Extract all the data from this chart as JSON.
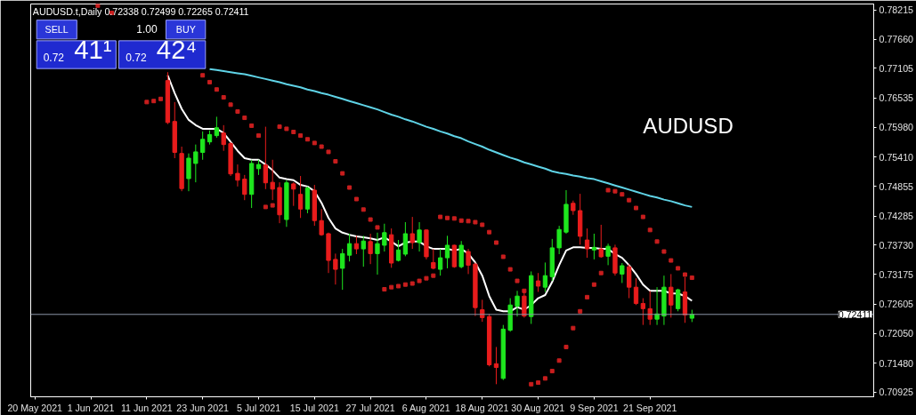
{
  "chart_data": {
    "type": "candlestick",
    "title": "AUDUSD.t,Daily  0.72338 0.72499 0.72265 0.72411",
    "categories": [
      "20 May 2021",
      null,
      null,
      null,
      null,
      null,
      null,
      null,
      "1 Jun 2021",
      null,
      null,
      null,
      null,
      null,
      null,
      null,
      "11 Jun 2021",
      null,
      null,
      null,
      null,
      null,
      null,
      null,
      "23 Jun 2021",
      null,
      null,
      null,
      null,
      null,
      null,
      null,
      "5 Jul 2021",
      null,
      null,
      null,
      null,
      null,
      null,
      null,
      "15 Jul 2021",
      null,
      null,
      null,
      null,
      null,
      null,
      null,
      "27 Jul 2021",
      null,
      null,
      null,
      null,
      null,
      null,
      null,
      "6 Aug 2021",
      null,
      null,
      null,
      null,
      null,
      null,
      null,
      "18 Aug 2021",
      null,
      null,
      null,
      null,
      null,
      null,
      null,
      "30 Aug 2021",
      null,
      null,
      null,
      null,
      null,
      null,
      null,
      "9 Sep 2021",
      null,
      null,
      null,
      null,
      null,
      null,
      null,
      "21 Sep 2021",
      null,
      null,
      null,
      null,
      null,
      null
    ],
    "ohlc": [
      null,
      null,
      null,
      null,
      null,
      null,
      null,
      null,
      null,
      null,
      null,
      null,
      null,
      null,
      null,
      null,
      null,
      null,
      null,
      [
        0.7687,
        0.7703,
        0.7604,
        0.7607
      ],
      [
        0.7609,
        0.7646,
        0.7539,
        0.755
      ],
      [
        0.7548,
        0.7561,
        0.7476,
        0.7481
      ],
      [
        0.75,
        0.7548,
        0.7476,
        0.7539
      ],
      [
        0.7529,
        0.7565,
        0.7493,
        0.7551
      ],
      [
        0.755,
        0.759,
        0.7536,
        0.7575
      ],
      [
        0.757,
        0.7592,
        0.7565,
        0.7584
      ],
      [
        0.7582,
        0.7618,
        0.7578,
        0.7597
      ],
      [
        0.7587,
        0.7602,
        0.7553,
        0.7565
      ],
      [
        0.7567,
        0.757,
        0.7505,
        0.7509
      ],
      [
        0.751,
        0.7527,
        0.7485,
        0.7497
      ],
      [
        0.7499,
        0.7507,
        0.7459,
        0.747
      ],
      [
        0.747,
        0.7536,
        0.7444,
        0.7529
      ],
      [
        0.7519,
        0.7536,
        0.7507,
        0.7527
      ],
      [
        0.7526,
        0.7599,
        0.748,
        0.7492
      ],
      [
        0.7493,
        0.7536,
        0.7459,
        0.748
      ],
      [
        0.7483,
        0.7493,
        0.7415,
        0.7431
      ],
      [
        0.7422,
        0.7497,
        0.7408,
        0.7492
      ],
      [
        0.749,
        0.7493,
        0.7448,
        0.748
      ],
      [
        0.747,
        0.7505,
        0.7425,
        0.7442
      ],
      [
        0.7442,
        0.7485,
        0.7434,
        0.7482
      ],
      [
        0.7478,
        0.7488,
        0.741,
        0.742
      ],
      [
        0.742,
        0.7442,
        0.7391,
        0.7393
      ],
      [
        0.7395,
        0.7397,
        0.732,
        0.7344
      ],
      [
        0.7346,
        0.7357,
        0.7298,
        0.7327
      ],
      [
        0.7329,
        0.7366,
        0.7288,
        0.7357
      ],
      [
        0.7354,
        0.7395,
        0.7342,
        0.7376
      ],
      [
        0.7376,
        0.7391,
        0.7356,
        0.7366
      ],
      [
        0.7366,
        0.7391,
        0.7332,
        0.7381
      ],
      [
        0.738,
        0.7395,
        0.7337,
        0.7357
      ],
      [
        0.7357,
        0.7397,
        0.7317,
        0.7376
      ],
      [
        0.7373,
        0.7414,
        0.7361,
        0.7397
      ],
      [
        0.7393,
        0.7405,
        0.733,
        0.7339
      ],
      [
        0.7344,
        0.7383,
        0.7342,
        0.7364
      ],
      [
        0.7356,
        0.7417,
        0.7352,
        0.7395
      ],
      [
        0.7395,
        0.7427,
        0.7366,
        0.7378
      ],
      [
        0.7378,
        0.7417,
        0.7361,
        0.7402
      ],
      [
        0.7402,
        0.7403,
        0.7346,
        0.7351
      ],
      [
        0.734,
        0.7366,
        0.7327,
        0.7329
      ],
      [
        0.7327,
        0.7366,
        0.7315,
        0.7349
      ],
      [
        0.7349,
        0.7391,
        0.7329,
        0.7373
      ],
      [
        0.7373,
        0.7374,
        0.733,
        0.7332
      ],
      [
        0.7332,
        0.7381,
        0.7329,
        0.7373
      ],
      [
        0.7361,
        0.7366,
        0.7318,
        0.7335
      ],
      [
        0.7337,
        0.734,
        0.7238,
        0.7254
      ],
      [
        0.725,
        0.7269,
        0.7227,
        0.7235
      ],
      [
        0.7237,
        0.7242,
        0.7142,
        0.7145
      ],
      [
        0.7147,
        0.7179,
        0.7108,
        0.714
      ],
      [
        0.7119,
        0.7221,
        0.7116,
        0.7213
      ],
      [
        0.7211,
        0.7272,
        0.7208,
        0.7259
      ],
      [
        0.7257,
        0.7286,
        0.7237,
        0.7276
      ],
      [
        0.7276,
        0.7286,
        0.7235,
        0.7238
      ],
      [
        0.7237,
        0.7323,
        0.7223,
        0.7315
      ],
      [
        0.7305,
        0.732,
        0.7284,
        0.7295
      ],
      [
        0.7293,
        0.734,
        0.7284,
        0.7315
      ],
      [
        0.7313,
        0.7385,
        0.7305,
        0.7368
      ],
      [
        0.7368,
        0.741,
        0.7356,
        0.7403
      ],
      [
        0.7398,
        0.7478,
        0.7395,
        0.7451
      ],
      [
        0.7453,
        0.7458,
        0.7431,
        0.7439
      ],
      [
        0.7439,
        0.7471,
        0.7374,
        0.739
      ],
      [
        0.7383,
        0.7405,
        0.7349,
        0.7366
      ],
      [
        0.7364,
        0.7395,
        0.7346,
        0.7369
      ],
      [
        0.7366,
        0.7412,
        0.7349,
        0.7351
      ],
      [
        0.7352,
        0.7376,
        0.7335,
        0.7371
      ],
      [
        0.7368,
        0.7374,
        0.7315,
        0.732
      ],
      [
        0.7318,
        0.7339,
        0.7301,
        0.7334
      ],
      [
        0.7332,
        0.7337,
        0.7272,
        0.7293
      ],
      [
        0.7293,
        0.731,
        0.7259,
        0.7262
      ],
      [
        0.7262,
        0.7272,
        0.7221,
        0.7252
      ],
      [
        0.7252,
        0.7286,
        0.7221,
        0.7232
      ],
      [
        0.7232,
        0.7293,
        0.7221,
        0.7242
      ],
      [
        0.7238,
        0.7315,
        0.7221,
        0.7293
      ],
      [
        0.7293,
        0.7318,
        0.7235,
        0.7259
      ],
      [
        0.7252,
        0.729,
        0.7247,
        0.7288
      ],
      [
        0.7284,
        0.7312,
        0.7225,
        0.724
      ],
      [
        0.72338,
        0.72499,
        0.72265,
        0.72411
      ]
    ],
    "colors": [
      null,
      null,
      null,
      null,
      null,
      null,
      null,
      null,
      null,
      null,
      null,
      null,
      null,
      null,
      null,
      null,
      null,
      null,
      null,
      "#e81c1c",
      "#e81c1c",
      "#e81c1c",
      "#1ee61e",
      "#1ee61e",
      "#1ee61e",
      "#1ee61e",
      "#1ee61e",
      "#e81c1c",
      "#e81c1c",
      "#e81c1c",
      "#e81c1c",
      "#1ee61e",
      "#1ee61e",
      "#e81c1c",
      "#e81c1c",
      "#e81c1c",
      "#1ee61e",
      "#e81c1c",
      "#e81c1c",
      "#1ee61e",
      "#e81c1c",
      "#e81c1c",
      "#e81c1c",
      "#e81c1c",
      "#1ee61e",
      "#1ee61e",
      "#e81c1c",
      "#1ee61e",
      "#e81c1c",
      "#1ee61e",
      "#1ee61e",
      "#e81c1c",
      "#1ee61e",
      "#1ee61e",
      "#e81c1c",
      "#1ee61e",
      "#e81c1c",
      "#e81c1c",
      "#1ee61e",
      "#1ee61e",
      "#e81c1c",
      "#1ee61e",
      "#e81c1c",
      "#e81c1c",
      "#e81c1c",
      "#e81c1c",
      "#e81c1c",
      "#1ee61e",
      "#1ee61e",
      "#1ee61e",
      "#e81c1c",
      "#1ee61e",
      "#e81c1c",
      "#1ee61e",
      "#1ee61e",
      "#1ee61e",
      "#1ee61e",
      "#e81c1c",
      "#e81c1c",
      "#e81c1c",
      "#1ee61e",
      "#e81c1c",
      "#1ee61e",
      "#e81c1c",
      "#1ee61e",
      "#e81c1c",
      "#e81c1c",
      "#e81c1c",
      "#e81c1c",
      "#1ee61e",
      "#1ee61e",
      "#e81c1c",
      "#1ee61e",
      "#e81c1c",
      "#1ee61e"
    ],
    "series": [
      {
        "type": "line",
        "color": "#ffffff",
        "values": [
          null,
          null,
          null,
          null,
          null,
          null,
          null,
          null,
          null,
          null,
          null,
          null,
          null,
          null,
          null,
          null,
          null,
          null,
          null,
          0.7697,
          0.7663,
          0.7633,
          0.7612,
          0.7602,
          0.7595,
          0.7595,
          0.7595,
          0.7587,
          0.757,
          0.7553,
          0.7539,
          0.7536,
          0.7536,
          0.7527,
          0.7516,
          0.7502,
          0.7499,
          0.7497,
          0.7488,
          0.7485,
          0.7476,
          0.7454,
          0.7425,
          0.7405,
          0.7397,
          0.7393,
          0.739,
          0.7388,
          0.7386,
          0.7383,
          0.7388,
          0.738,
          0.7371,
          0.7378,
          0.738,
          0.738,
          0.7371,
          0.7366,
          0.7366,
          0.7366,
          0.7363,
          0.7366,
          0.7357,
          0.734,
          0.7315,
          0.7276,
          0.725,
          0.7247,
          0.7247,
          0.7255,
          0.725,
          0.7259,
          0.7272,
          0.7278,
          0.7303,
          0.7335,
          0.7363,
          0.7369,
          0.7369,
          0.7368,
          0.7368,
          0.7366,
          0.7366,
          0.7356,
          0.7349,
          0.7335,
          0.7318,
          0.7298,
          0.7286,
          0.7286,
          0.7286,
          0.7281,
          0.7281,
          0.7276,
          0.7267
        ]
      },
      {
        "type": "line",
        "color": "#5fd3e6",
        "values": [
          null,
          null,
          null,
          null,
          null,
          null,
          null,
          null,
          null,
          null,
          null,
          null,
          null,
          null,
          null,
          null,
          null,
          null,
          null,
          null,
          null,
          null,
          null,
          null,
          null,
          0.7709,
          0.7707,
          0.7705,
          0.7703,
          0.7701,
          0.7699,
          0.7696,
          0.7693,
          0.769,
          0.7687,
          0.7684,
          0.768,
          0.7677,
          0.7674,
          0.767,
          0.7667,
          0.7663,
          0.766,
          0.7656,
          0.7652,
          0.7648,
          0.7644,
          0.764,
          0.7636,
          0.7632,
          0.7627,
          0.7622,
          0.7618,
          0.7613,
          0.7609,
          0.7604,
          0.7599,
          0.7595,
          0.759,
          0.7586,
          0.7581,
          0.7577,
          0.7571,
          0.7566,
          0.7561,
          0.7555,
          0.755,
          0.7545,
          0.754,
          0.7536,
          0.7531,
          0.7527,
          0.7523,
          0.7519,
          0.7514,
          0.7511,
          0.7509,
          0.7506,
          0.7504,
          0.7501,
          0.7499,
          0.7495,
          0.7491,
          0.7487,
          0.7483,
          0.7479,
          0.7475,
          0.7471,
          0.7467,
          0.7464,
          0.746,
          0.7457,
          0.7453,
          0.7449,
          0.7446
        ]
      },
      {
        "type": "scatter",
        "marker": "square",
        "color": "#c81e1e",
        "values": [
          null,
          null,
          null,
          null,
          null,
          null,
          null,
          null,
          null,
          0.783,
          null,
          0.7816,
          null,
          null,
          null,
          null,
          0.7646,
          0.7648,
          0.7652,
          null,
          null,
          null,
          null,
          null,
          0.7697,
          0.7684,
          0.767,
          0.7655,
          0.7641,
          0.7628,
          0.7616,
          0.7601,
          0.7582,
          0.7446,
          0.7449,
          0.7599,
          0.7595,
          0.7589,
          0.7582,
          0.7575,
          0.7568,
          0.7561,
          0.7551,
          0.7533,
          0.751,
          0.7483,
          0.7461,
          0.7441,
          0.7422,
          0.7407,
          0.7289,
          0.7293,
          0.7295,
          0.7298,
          0.73,
          0.7305,
          0.731,
          0.7315,
          0.7427,
          0.7425,
          0.7424,
          0.742,
          0.7419,
          0.7417,
          0.7412,
          0.7398,
          0.7378,
          0.7351,
          0.7327,
          0.7305,
          0.7286,
          0.7108,
          0.7111,
          0.7119,
          0.7133,
          0.7153,
          0.7179,
          0.7215,
          0.7247,
          0.7274,
          0.7298,
          0.732,
          0.7478,
          0.7476,
          0.747,
          0.7459,
          0.7444,
          0.7427,
          0.7402,
          0.738,
          0.7361,
          0.7344,
          0.7329,
          0.7317,
          0.7311
        ]
      }
    ],
    "ylim": [
      0.7084,
      0.7833
    ],
    "yticks": [
      0.70925,
      {
        "value": 0.7148,
        "label": "0.71480"
      },
      {
        "value": 0.7205,
        "label": "0.72050"
      },
      0.72605,
      0.73175,
      {
        "value": 0.7373,
        "label": "0.73730"
      },
      0.74285,
      0.74855,
      {
        "value": 0.7541,
        "label": "0.75410"
      },
      {
        "value": 0.7598,
        "label": "0.75980"
      },
      0.76535,
      0.77105,
      {
        "value": 0.7766,
        "label": "0.77660"
      },
      0.78215
    ],
    "ref_lines": [
      {
        "axis": "y",
        "value": 0.72411,
        "label": "0.72411",
        "color": "#8c96a8"
      }
    ],
    "annotations": [
      "AUDUSD",
      "SELL",
      "1.00",
      "BUY",
      "0.72 41¹",
      "0.72 42⁴"
    ]
  }
}
